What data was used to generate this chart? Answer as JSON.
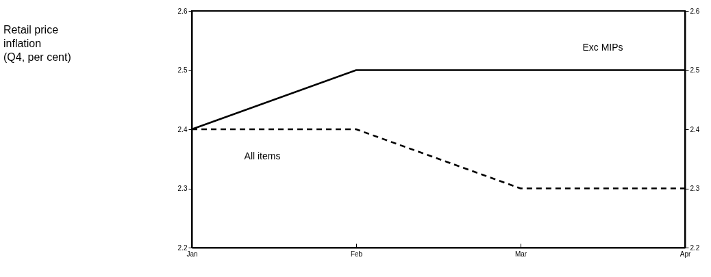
{
  "chart_data": {
    "type": "line",
    "annotations": [
      "Retail price\n inflation\n(Q4, per cent)"
    ],
    "categories": [
      "Jan",
      "Feb",
      "Mar",
      "Apr"
    ],
    "series": [
      {
        "name": "Exc MIPs",
        "color": "#000000",
        "line_style": "solid",
        "values": [
          2.4,
          2.5,
          2.5,
          2.5
        ]
      },
      {
        "name": "All items",
        "color": "#000000",
        "line_style": "dashed",
        "values": [
          2.4,
          2.4,
          2.3,
          2.3
        ]
      }
    ],
    "ylim": [
      2.2,
      2.6
    ],
    "yticks": [
      2.2,
      2.3,
      2.4,
      2.5,
      2.6
    ],
    "y2lim": [
      2.2,
      2.6
    ],
    "y2ticks": [
      2.2,
      2.3,
      2.4,
      2.5,
      2.6
    ],
    "grid": false,
    "marker": "none"
  }
}
